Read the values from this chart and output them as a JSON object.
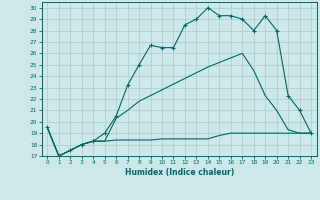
{
  "xlabel": "Humidex (Indice chaleur)",
  "bg_color": "#cce8e8",
  "grid_color": "#aacccc",
  "line_color": "#006666",
  "xlim": [
    -0.5,
    23.5
  ],
  "ylim": [
    17,
    30.5
  ],
  "yticks": [
    17,
    18,
    19,
    20,
    21,
    22,
    23,
    24,
    25,
    26,
    27,
    28,
    29,
    30
  ],
  "xticks": [
    0,
    1,
    2,
    3,
    4,
    5,
    6,
    7,
    8,
    9,
    10,
    11,
    12,
    13,
    14,
    15,
    16,
    17,
    18,
    19,
    20,
    21,
    22,
    23
  ],
  "line1_x": [
    0,
    1,
    2,
    3,
    4,
    5,
    6,
    7,
    8,
    9,
    10,
    11,
    12,
    13,
    14,
    15,
    16,
    17,
    18,
    19,
    20,
    21,
    22,
    23
  ],
  "line1_y": [
    19.5,
    17.0,
    17.5,
    18.0,
    18.3,
    19.0,
    20.5,
    23.2,
    25.0,
    26.7,
    26.5,
    26.5,
    28.5,
    29.0,
    30.0,
    29.3,
    29.3,
    29.0,
    28.0,
    29.3,
    28.0,
    22.3,
    21.0,
    19.0
  ],
  "line2_x": [
    0,
    1,
    2,
    3,
    4,
    5,
    6,
    7,
    8,
    9,
    10,
    11,
    12,
    13,
    14,
    15,
    16,
    17,
    18,
    19,
    20,
    21,
    22,
    23
  ],
  "line2_y": [
    19.5,
    17.0,
    17.5,
    18.0,
    18.3,
    18.3,
    18.4,
    18.4,
    18.4,
    18.4,
    18.5,
    18.5,
    18.5,
    18.5,
    18.5,
    18.8,
    19.0,
    19.0,
    19.0,
    19.0,
    19.0,
    19.0,
    19.0,
    19.0
  ],
  "line3_x": [
    0,
    1,
    2,
    3,
    4,
    5,
    6,
    7,
    8,
    9,
    10,
    11,
    12,
    13,
    14,
    15,
    16,
    17,
    18,
    19,
    20,
    21,
    22,
    23
  ],
  "line3_y": [
    19.5,
    17.0,
    17.5,
    18.0,
    18.3,
    18.3,
    20.3,
    21.0,
    21.8,
    22.3,
    22.8,
    23.3,
    23.8,
    24.3,
    24.8,
    25.2,
    25.6,
    26.0,
    24.5,
    22.3,
    21.0,
    19.3,
    19.0,
    19.0
  ]
}
